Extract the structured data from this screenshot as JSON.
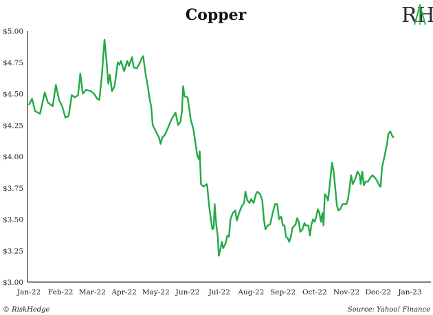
{
  "chart_data": {
    "type": "line",
    "title": "Copper",
    "xlabel": "",
    "ylabel": "",
    "ylim": [
      3.0,
      5.0
    ],
    "y_ticks": [
      "$3.00",
      "$3.25",
      "$3.50",
      "$3.75",
      "$4.00",
      "$4.25",
      "$4.50",
      "$4.75",
      "$5.00"
    ],
    "x_ticks": [
      "Jan-22",
      "Feb-22",
      "Mar-22",
      "Apr-22",
      "May-22",
      "Jun-22",
      "Jul-22",
      "Aug-22",
      "Sep-22",
      "Oct-22",
      "Nov-22",
      "Dec-22",
      "Jan-23"
    ],
    "grid": false,
    "line_color": "#22aa44",
    "series": [
      {
        "name": "",
        "values": [
          [
            0.0,
            4.41
          ],
          [
            0.1,
            4.46
          ],
          [
            0.2,
            4.36
          ],
          [
            0.35,
            4.34
          ],
          [
            0.5,
            4.51
          ],
          [
            0.6,
            4.43
          ],
          [
            0.75,
            4.4
          ],
          [
            0.85,
            4.57
          ],
          [
            0.95,
            4.45
          ],
          [
            1.05,
            4.4
          ],
          [
            1.15,
            4.31
          ],
          [
            1.25,
            4.32
          ],
          [
            1.35,
            4.49
          ],
          [
            1.45,
            4.47
          ],
          [
            1.55,
            4.49
          ],
          [
            1.62,
            4.66
          ],
          [
            1.7,
            4.5
          ],
          [
            1.8,
            4.53
          ],
          [
            1.95,
            4.52
          ],
          [
            2.05,
            4.5
          ],
          [
            2.15,
            4.46
          ],
          [
            2.22,
            4.45
          ],
          [
            2.3,
            4.65
          ],
          [
            2.38,
            4.93
          ],
          [
            2.45,
            4.75
          ],
          [
            2.5,
            4.58
          ],
          [
            2.55,
            4.65
          ],
          [
            2.62,
            4.52
          ],
          [
            2.7,
            4.56
          ],
          [
            2.8,
            4.75
          ],
          [
            2.85,
            4.73
          ],
          [
            2.9,
            4.76
          ],
          [
            3.0,
            4.68
          ],
          [
            3.1,
            4.76
          ],
          [
            3.15,
            4.72
          ],
          [
            3.25,
            4.79
          ],
          [
            3.3,
            4.71
          ],
          [
            3.4,
            4.7
          ],
          [
            3.5,
            4.75
          ],
          [
            3.55,
            4.78
          ],
          [
            3.6,
            4.8
          ],
          [
            3.68,
            4.65
          ],
          [
            3.75,
            4.55
          ],
          [
            3.8,
            4.46
          ],
          [
            3.85,
            4.4
          ],
          [
            3.9,
            4.25
          ],
          [
            4.0,
            4.2
          ],
          [
            4.1,
            4.15
          ],
          [
            4.15,
            4.1
          ],
          [
            4.2,
            4.15
          ],
          [
            4.28,
            4.17
          ],
          [
            4.35,
            4.21
          ],
          [
            4.45,
            4.27
          ],
          [
            4.5,
            4.3
          ],
          [
            4.55,
            4.32
          ],
          [
            4.62,
            4.35
          ],
          [
            4.7,
            4.25
          ],
          [
            4.78,
            4.28
          ],
          [
            4.82,
            4.36
          ],
          [
            4.86,
            4.56
          ],
          [
            4.9,
            4.48
          ],
          [
            5.0,
            4.47
          ],
          [
            5.06,
            4.36
          ],
          [
            5.1,
            4.29
          ],
          [
            5.18,
            4.22
          ],
          [
            5.25,
            4.1
          ],
          [
            5.3,
            4.01
          ],
          [
            5.35,
            3.98
          ],
          [
            5.38,
            4.04
          ],
          [
            5.42,
            3.78
          ],
          [
            5.5,
            3.76
          ],
          [
            5.6,
            3.78
          ],
          [
            5.62,
            3.76
          ],
          [
            5.68,
            3.6
          ],
          [
            5.72,
            3.52
          ],
          [
            5.78,
            3.42
          ],
          [
            5.82,
            3.43
          ],
          [
            5.85,
            3.62
          ],
          [
            5.9,
            3.46
          ],
          [
            5.95,
            3.36
          ],
          [
            5.98,
            3.21
          ],
          [
            6.02,
            3.25
          ],
          [
            6.08,
            3.32
          ],
          [
            6.12,
            3.27
          ],
          [
            6.2,
            3.31
          ],
          [
            6.25,
            3.37
          ],
          [
            6.3,
            3.36
          ],
          [
            6.35,
            3.5
          ],
          [
            6.42,
            3.55
          ],
          [
            6.5,
            3.57
          ],
          [
            6.55,
            3.49
          ],
          [
            6.62,
            3.55
          ],
          [
            6.7,
            3.6
          ],
          [
            6.78,
            3.63
          ],
          [
            6.82,
            3.72
          ],
          [
            6.88,
            3.65
          ],
          [
            6.95,
            3.63
          ],
          [
            7.0,
            3.66
          ],
          [
            7.08,
            3.63
          ],
          [
            7.15,
            3.7
          ],
          [
            7.2,
            3.72
          ],
          [
            7.28,
            3.7
          ],
          [
            7.35,
            3.65
          ],
          [
            7.4,
            3.5
          ],
          [
            7.45,
            3.42
          ],
          [
            7.52,
            3.45
          ],
          [
            7.6,
            3.46
          ],
          [
            7.68,
            3.55
          ],
          [
            7.75,
            3.62
          ],
          [
            7.82,
            3.62
          ],
          [
            7.88,
            3.5
          ],
          [
            7.95,
            3.52
          ],
          [
            8.0,
            3.45
          ],
          [
            8.05,
            3.45
          ],
          [
            8.1,
            3.36
          ],
          [
            8.15,
            3.35
          ],
          [
            8.2,
            3.32
          ],
          [
            8.25,
            3.36
          ],
          [
            8.3,
            3.43
          ],
          [
            8.4,
            3.46
          ],
          [
            8.45,
            3.51
          ],
          [
            8.5,
            3.48
          ],
          [
            8.55,
            3.4
          ],
          [
            8.62,
            3.42
          ],
          [
            8.68,
            3.47
          ],
          [
            8.72,
            3.45
          ],
          [
            8.8,
            3.45
          ],
          [
            8.85,
            3.37
          ],
          [
            8.9,
            3.46
          ],
          [
            8.95,
            3.5
          ],
          [
            9.0,
            3.48
          ],
          [
            9.05,
            3.52
          ],
          [
            9.1,
            3.58
          ],
          [
            9.15,
            3.55
          ],
          [
            9.2,
            3.48
          ],
          [
            9.22,
            3.52
          ],
          [
            9.25,
            3.55
          ],
          [
            9.28,
            3.45
          ],
          [
            9.32,
            3.7
          ],
          [
            9.38,
            3.68
          ],
          [
            9.42,
            3.65
          ],
          [
            9.5,
            3.83
          ],
          [
            9.55,
            3.95
          ],
          [
            9.6,
            3.88
          ],
          [
            9.65,
            3.75
          ],
          [
            9.7,
            3.61
          ],
          [
            9.75,
            3.57
          ],
          [
            9.8,
            3.58
          ],
          [
            9.88,
            3.62
          ],
          [
            10.0,
            3.62
          ],
          [
            10.05,
            3.66
          ],
          [
            10.1,
            3.75
          ],
          [
            10.15,
            3.85
          ],
          [
            10.2,
            3.78
          ],
          [
            10.28,
            3.82
          ],
          [
            10.35,
            3.88
          ],
          [
            10.42,
            3.85
          ],
          [
            10.45,
            3.78
          ],
          [
            10.5,
            3.88
          ],
          [
            10.55,
            3.77
          ],
          [
            10.6,
            3.8
          ],
          [
            10.68,
            3.8
          ],
          [
            10.75,
            3.83
          ],
          [
            10.82,
            3.85
          ],
          [
            10.9,
            3.83
          ],
          [
            10.98,
            3.8
          ],
          [
            11.05,
            3.76
          ],
          [
            11.08,
            3.76
          ],
          [
            11.12,
            3.91
          ],
          [
            11.2,
            4.0
          ],
          [
            11.28,
            4.1
          ],
          [
            11.32,
            4.18
          ],
          [
            11.38,
            4.2
          ],
          [
            11.45,
            4.16
          ],
          [
            11.5,
            4.15
          ]
        ]
      }
    ]
  },
  "footer": {
    "left": "© RiskHedge",
    "right": "Source: Yahoo! Finance"
  },
  "logo": {
    "text": "RH",
    "accent_color": "#22aa44"
  }
}
